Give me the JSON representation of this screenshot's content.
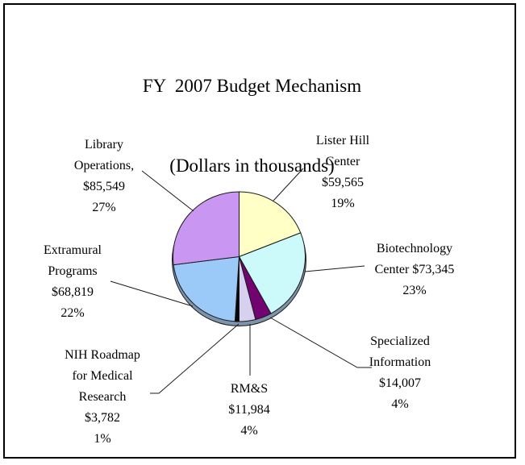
{
  "title": {
    "line1": "FY  2007 Budget Mechanism",
    "line2": "(Dollars in thousands)"
  },
  "chart_data": {
    "type": "pie",
    "title": "FY 2007 Budget Mechanism",
    "subtitle": "(Dollars in thousands)",
    "units": "dollars in thousands",
    "direction": "clockwise",
    "start_angle": "12 o'clock",
    "outline_color": "#1a1a1a",
    "rim_color": "#7E94AA",
    "slices": [
      {
        "label": "Lister Hill Center",
        "value": 59565,
        "value_display": "$59,565",
        "percent": 19,
        "color": "#FFFFC6"
      },
      {
        "label": "Biotechnology Center",
        "value": 73345,
        "value_display": "$73,345",
        "percent": 23,
        "color": "#CCF9FA"
      },
      {
        "label": "Specialized Information",
        "value": 14007,
        "value_display": "$14,007",
        "percent": 4,
        "color": "#740372"
      },
      {
        "label": "RM&S",
        "value": 11984,
        "value_display": "$11,984",
        "percent": 4,
        "color": "#D7D1F0"
      },
      {
        "label": "NIH Roadmap for Medical Research",
        "value": 3782,
        "value_display": "$3,782",
        "percent": 1,
        "color": "#060606"
      },
      {
        "label": "Extramural Programs",
        "value": 68819,
        "value_display": "$68,819",
        "percent": 22,
        "color": "#9BC9F8"
      },
      {
        "label": "Library Operations",
        "value": 85549,
        "value_display": "$85,549",
        "percent": 27,
        "color": "#C997F2"
      }
    ]
  },
  "callouts": [
    {
      "id": "lister-hill-center",
      "lines": [
        "Lister Hill",
        "Center",
        "$59,565",
        "19%"
      ]
    },
    {
      "id": "biotechnology-center",
      "lines": [
        "Biotechnology",
        "Center $73,345",
        "23%"
      ]
    },
    {
      "id": "specialized-information",
      "lines": [
        "Specialized",
        "Information",
        "$14,007",
        "4%"
      ]
    },
    {
      "id": "rms",
      "lines": [
        "RM&S",
        "$11,984",
        "4%"
      ]
    },
    {
      "id": "nih-roadmap",
      "lines": [
        "NIH Roadmap",
        "for Medical",
        "Research",
        "$3,782",
        "1%"
      ]
    },
    {
      "id": "extramural-programs",
      "lines": [
        "Extramural",
        "Programs",
        "$68,819",
        "22%"
      ]
    },
    {
      "id": "library-operations",
      "lines": [
        "Library",
        "Operations,",
        "$85,549",
        "27%"
      ]
    }
  ]
}
